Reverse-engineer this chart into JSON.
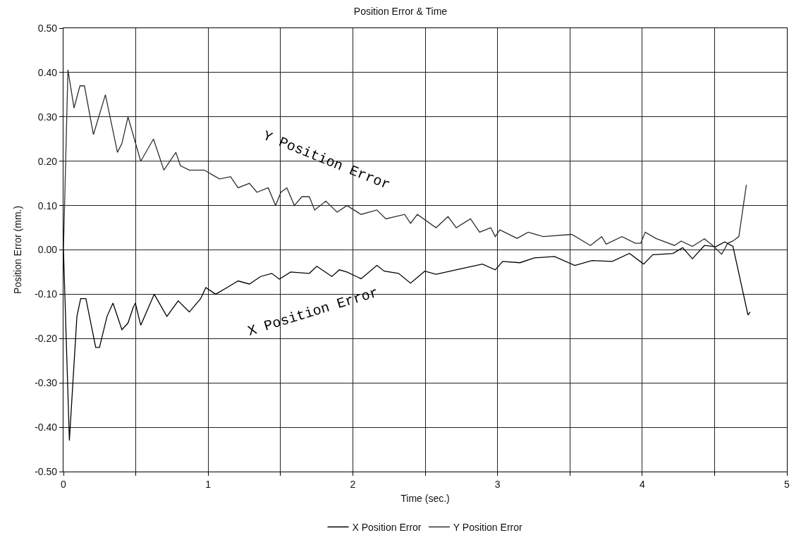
{
  "chart_data": {
    "type": "line",
    "title": "Position Error & Time",
    "xlabel": "Time (sec.)",
    "ylabel": "Position Error (mm.)",
    "xlim": [
      0,
      5
    ],
    "ylim": [
      -0.5,
      0.5
    ],
    "xticks": [
      0,
      {
        "value": 0.5,
        "label": null
      },
      1,
      {
        "value": 1.5,
        "label": null
      },
      2,
      {
        "value": 2.5,
        "label": null
      },
      3,
      {
        "value": 3.5,
        "label": null
      },
      4,
      {
        "value": 4.5,
        "label": null
      },
      5
    ],
    "yticks": [
      {
        "value": -0.5,
        "label": "-0.50"
      },
      {
        "value": -0.4,
        "label": "-0.40"
      },
      {
        "value": -0.3,
        "label": "-0.30"
      },
      {
        "value": -0.2,
        "label": "-0.20"
      },
      {
        "value": -0.1,
        "label": "-0.10"
      },
      {
        "value": 0,
        "label": "0.00"
      },
      {
        "value": 0.1,
        "label": "0.10"
      },
      {
        "value": 0.2,
        "label": "0.20"
      },
      {
        "value": 0.3,
        "label": "0.30"
      },
      {
        "value": 0.4,
        "label": "0.40"
      },
      {
        "value": 0.5,
        "label": "0.50"
      }
    ],
    "grid": true,
    "legend": "bottom",
    "marker": "none",
    "line_style": "solid",
    "annotations": [
      "Y Position Error",
      "X Position Error"
    ],
    "series": [
      {
        "name": "X Position Error",
        "color": "#000000",
        "x": [
          0,
          0.041,
          0.093,
          0.119,
          0.155,
          0.223,
          0.249,
          0.301,
          0.342,
          0.404,
          0.446,
          0.482,
          0.497,
          0.534,
          0.627,
          0.715,
          0.793,
          0.87,
          0.948,
          0.984,
          1.052,
          1.13,
          1.207,
          1.285,
          1.363,
          1.44,
          1.492,
          1.57,
          1.699,
          1.751,
          1.855,
          1.907,
          1.959,
          2.057,
          2.166,
          2.218,
          2.316,
          2.399,
          2.497,
          2.575,
          2.756,
          2.896,
          2.984,
          3.036,
          3.155,
          3.254,
          3.394,
          3.534,
          3.653,
          3.793,
          3.912,
          4.01,
          4.073,
          4.212,
          4.28,
          4.347,
          4.43,
          4.508,
          4.57,
          4.627,
          4.731,
          4.746
        ],
        "values": [
          0,
          -0.43,
          -0.15,
          -0.11,
          -0.11,
          -0.22,
          -0.22,
          -0.15,
          -0.12,
          -0.18,
          -0.165,
          -0.13,
          -0.12,
          -0.17,
          -0.1,
          -0.15,
          -0.115,
          -0.14,
          -0.11,
          -0.085,
          -0.1,
          -0.085,
          -0.07,
          -0.077,
          -0.06,
          -0.053,
          -0.066,
          -0.05,
          -0.053,
          -0.037,
          -0.06,
          -0.045,
          -0.05,
          -0.065,
          -0.035,
          -0.048,
          -0.053,
          -0.075,
          -0.048,
          -0.055,
          -0.042,
          -0.032,
          -0.045,
          -0.026,
          -0.029,
          -0.018,
          -0.015,
          -0.035,
          -0.024,
          -0.026,
          -0.008,
          -0.032,
          -0.011,
          -0.008,
          0.005,
          -0.02,
          0.01,
          0.007,
          0.018,
          0.008,
          -0.147,
          -0.14
        ]
      },
      {
        "name": "Y Position Error",
        "color": "#303030",
        "x": [
          0,
          0.031,
          0.073,
          0.114,
          0.145,
          0.207,
          0.29,
          0.373,
          0.404,
          0.446,
          0.534,
          0.622,
          0.694,
          0.777,
          0.808,
          0.87,
          0.974,
          1.026,
          1.078,
          1.155,
          1.207,
          1.285,
          1.337,
          1.415,
          1.466,
          1.503,
          1.544,
          1.596,
          1.648,
          1.699,
          1.736,
          1.813,
          1.891,
          1.959,
          2.057,
          2.166,
          2.228,
          2.358,
          2.399,
          2.446,
          2.575,
          2.658,
          2.715,
          2.813,
          2.876,
          2.953,
          2.984,
          3.016,
          3.135,
          3.212,
          3.316,
          3.513,
          3.642,
          3.72,
          3.751,
          3.86,
          3.953,
          3.99,
          4.021,
          4.093,
          4.223,
          4.269,
          4.347,
          4.43,
          4.487,
          4.549,
          4.591,
          4.627,
          4.668,
          4.72
        ],
        "values": [
          0,
          0.406,
          0.32,
          0.37,
          0.37,
          0.26,
          0.35,
          0.22,
          0.24,
          0.3,
          0.2,
          0.25,
          0.18,
          0.22,
          0.19,
          0.18,
          0.18,
          0.17,
          0.16,
          0.165,
          0.14,
          0.15,
          0.13,
          0.14,
          0.1,
          0.13,
          0.14,
          0.1,
          0.12,
          0.12,
          0.09,
          0.11,
          0.085,
          0.1,
          0.08,
          0.09,
          0.07,
          0.08,
          0.06,
          0.08,
          0.05,
          0.075,
          0.05,
          0.07,
          0.04,
          0.05,
          0.03,
          0.045,
          0.026,
          0.04,
          0.03,
          0.035,
          0.01,
          0.03,
          0.013,
          0.03,
          0.015,
          0.015,
          0.04,
          0.026,
          0.01,
          0.02,
          0.008,
          0.025,
          0.01,
          -0.01,
          0.015,
          0.02,
          0.03,
          0.147
        ]
      }
    ]
  }
}
